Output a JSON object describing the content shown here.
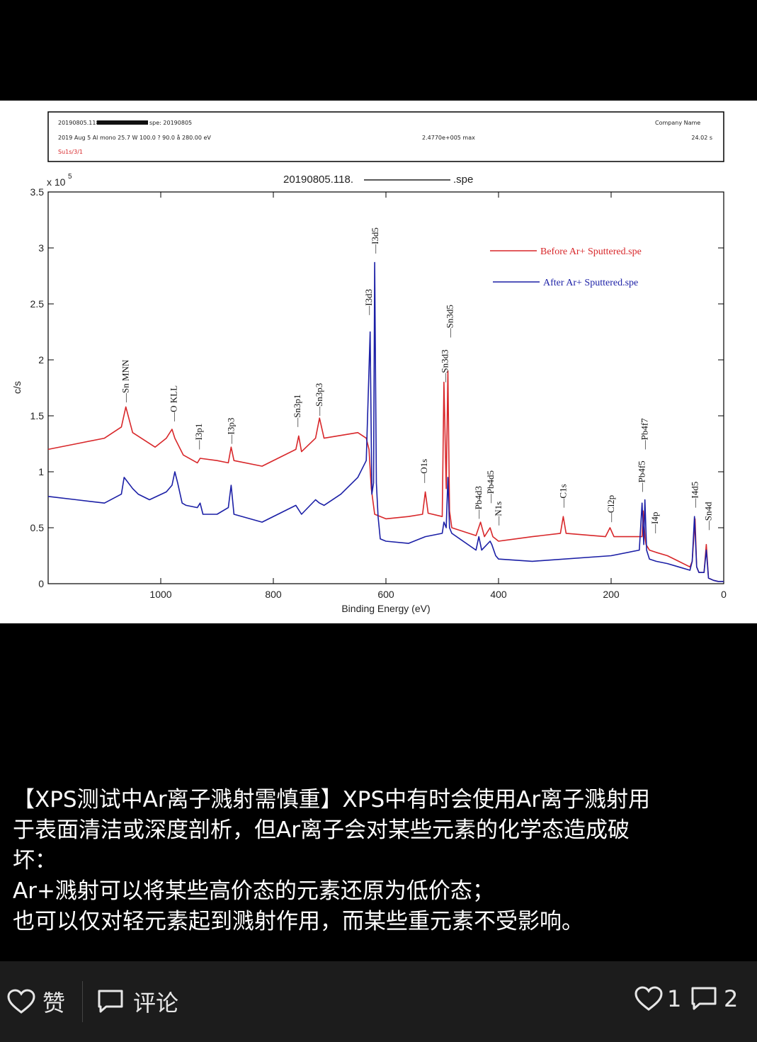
{
  "header": {
    "line1_left": "20190805.118",
    "line1_mid": "spe: 20190805",
    "company": "Company Name",
    "line2_left": "2019 Aug 5  Al mono  25.7 W  100.0 ?  90.0 å  280.00 eV",
    "line2_mid": "2.4770e+005 max",
    "line2_right": "24.02 s",
    "line3": "Su1s/3/1"
  },
  "chart_data": {
    "type": "line",
    "title": "20190805.118.",
    "title_suffix": ".spe",
    "xlabel": "Binding Energy (eV)",
    "ylabel": "c/s",
    "y_exponent_label": "x 10",
    "y_exponent": "5",
    "xlim": [
      1200,
      0
    ],
    "ylim": [
      0,
      3.5
    ],
    "x_ticks": [
      1000,
      800,
      600,
      400,
      200,
      0
    ],
    "y_ticks": [
      "0",
      "0.5",
      "1",
      "1.5",
      "2",
      "2.5",
      "3",
      "3.5"
    ],
    "y_tick_values": [
      0,
      0.5,
      1,
      1.5,
      2,
      2.5,
      3,
      3.5
    ],
    "legend_position": "top-right",
    "series": [
      {
        "name": "Before Ar+ Sputtered.spe",
        "color": "#d8272a",
        "x": [
          1200,
          1150,
          1100,
          1070,
          1062,
          1050,
          1010,
          990,
          980,
          975,
          960,
          935,
          930,
          900,
          880,
          875,
          870,
          820,
          760,
          755,
          750,
          725,
          718,
          710,
          650,
          635,
          630,
          626,
          620,
          600,
          560,
          535,
          530,
          525,
          500,
          497,
          493,
          490,
          487,
          483,
          440,
          432,
          425,
          415,
          410,
          400,
          340,
          290,
          285,
          280,
          210,
          202,
          195,
          150,
          145,
          143,
          140,
          138,
          132,
          120,
          100,
          80,
          60,
          56,
          51,
          48,
          44,
          35,
          31,
          27,
          18,
          10,
          0
        ],
        "y": [
          1.2,
          1.25,
          1.3,
          1.4,
          1.58,
          1.35,
          1.22,
          1.3,
          1.38,
          1.3,
          1.15,
          1.08,
          1.12,
          1.1,
          1.08,
          1.22,
          1.1,
          1.05,
          1.2,
          1.32,
          1.18,
          1.3,
          1.48,
          1.3,
          1.35,
          1.3,
          1.2,
          0.85,
          0.62,
          0.58,
          0.6,
          0.62,
          0.82,
          0.63,
          0.6,
          1.8,
          0.85,
          1.9,
          0.65,
          0.5,
          0.43,
          0.55,
          0.42,
          0.5,
          0.42,
          0.38,
          0.42,
          0.45,
          0.6,
          0.45,
          0.42,
          0.5,
          0.42,
          0.42,
          0.42,
          0.65,
          0.42,
          0.35,
          0.3,
          0.28,
          0.25,
          0.2,
          0.15,
          0.2,
          0.58,
          0.15,
          0.1,
          0.1,
          0.35,
          0.05,
          0.03,
          0.02,
          0.02
        ]
      },
      {
        "name": "After Ar+ Sputtered.spe",
        "color": "#1b1fa6",
        "x": [
          1200,
          1150,
          1100,
          1070,
          1065,
          1050,
          1040,
          1020,
          990,
          980,
          975,
          970,
          962,
          955,
          935,
          930,
          925,
          900,
          880,
          875,
          870,
          820,
          760,
          750,
          725,
          718,
          710,
          680,
          650,
          635,
          628,
          625,
          622,
          620,
          617,
          614,
          610,
          600,
          560,
          530,
          500,
          497,
          493,
          490,
          487,
          483,
          440,
          435,
          430,
          415,
          412,
          405,
          400,
          340,
          200,
          150,
          145,
          142,
          140,
          137,
          132,
          120,
          100,
          80,
          60,
          56,
          52,
          48,
          44,
          35,
          31,
          27,
          18,
          10,
          0
        ],
        "y": [
          0.78,
          0.75,
          0.72,
          0.8,
          0.95,
          0.85,
          0.8,
          0.75,
          0.82,
          0.88,
          1.0,
          0.9,
          0.72,
          0.7,
          0.68,
          0.72,
          0.62,
          0.62,
          0.68,
          0.88,
          0.62,
          0.55,
          0.7,
          0.62,
          0.75,
          0.72,
          0.7,
          0.8,
          0.95,
          1.1,
          2.25,
          0.8,
          0.9,
          2.87,
          0.9,
          0.6,
          0.4,
          0.38,
          0.36,
          0.42,
          0.45,
          0.55,
          0.5,
          0.95,
          0.5,
          0.45,
          0.3,
          0.42,
          0.3,
          0.38,
          0.35,
          0.25,
          0.22,
          0.2,
          0.25,
          0.3,
          0.72,
          0.35,
          0.75,
          0.3,
          0.22,
          0.2,
          0.18,
          0.15,
          0.12,
          0.2,
          0.6,
          0.15,
          0.1,
          0.1,
          0.3,
          0.05,
          0.03,
          0.02,
          0.02
        ]
      }
    ],
    "peak_labels": [
      {
        "text": "Sn MNN",
        "x": 1062,
        "y": 1.62
      },
      {
        "text": "O KLL",
        "x": 977,
        "y": 1.45
      },
      {
        "text": "I3p1",
        "x": 932,
        "y": 1.2
      },
      {
        "text": "I3p3",
        "x": 875,
        "y": 1.25
      },
      {
        "text": "Sn3p1",
        "x": 757,
        "y": 1.4
      },
      {
        "text": "Sn3p3",
        "x": 718,
        "y": 1.5
      },
      {
        "text": "I3d3",
        "x": 630,
        "y": 2.4
      },
      {
        "text": "I3d5",
        "x": 619,
        "y": 2.95
      },
      {
        "text": "O1s",
        "x": 532,
        "y": 0.9
      },
      {
        "text": "Sn3d3",
        "x": 495,
        "y": 1.8
      },
      {
        "text": "Sn3d5",
        "x": 486,
        "y": 2.2
      },
      {
        "text": "Pb4d3",
        "x": 435,
        "y": 0.58
      },
      {
        "text": "Pb4d5",
        "x": 414,
        "y": 0.72
      },
      {
        "text": "N1s",
        "x": 400,
        "y": 0.52
      },
      {
        "text": "C1s",
        "x": 285,
        "y": 0.68
      },
      {
        "text": "Cl2p",
        "x": 200,
        "y": 0.55
      },
      {
        "text": "Pb4f5",
        "x": 145,
        "y": 0.82
      },
      {
        "text": "Pb4f7",
        "x": 140,
        "y": 1.2
      },
      {
        "text": "I4p",
        "x": 122,
        "y": 0.45
      },
      {
        "text": "I4d5",
        "x": 51,
        "y": 0.68
      },
      {
        "text": "Sn4d",
        "x": 27,
        "y": 0.48
      }
    ]
  },
  "post": {
    "lines": [
      "【XPS测试中Ar离子溅射需慎重】XPS中有时会使用Ar离子溅射用",
      "于表面清洁或深度剖析，但Ar离子会对某些元素的化学态造成破",
      "坏：",
      "Ar+溅射可以将某些高价态的元素还原为低价态；",
      "也可以仅对轻元素起到溅射作用，而某些重元素不受影响。"
    ]
  },
  "actions": {
    "like_label": "赞",
    "comment_label": "评论",
    "like_count": "1",
    "comment_count": "2"
  },
  "colors": {
    "background": "#000000",
    "bar_background": "#1c1c1c",
    "before_series": "#d8272a",
    "after_series": "#1b1fa6",
    "header_red": "#d8272a"
  }
}
